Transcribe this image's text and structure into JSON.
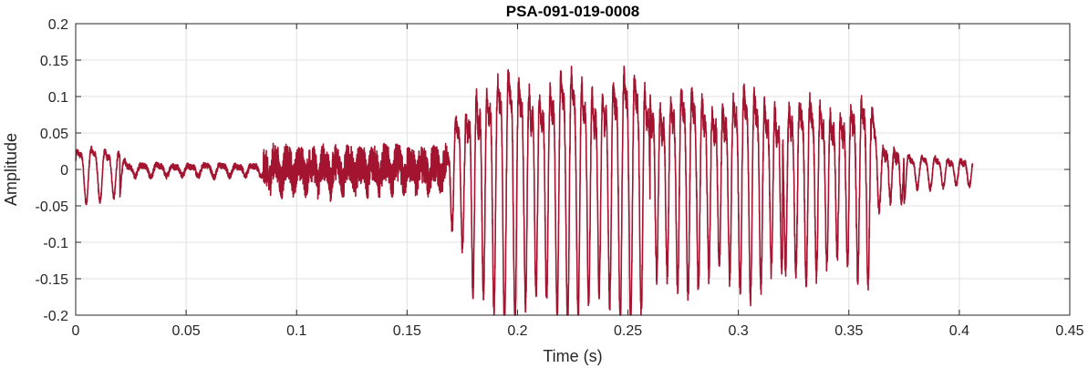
{
  "chart_data": {
    "type": "line",
    "title": "PSA-091-019-0008",
    "xlabel": "Time (s)",
    "ylabel": "Amplitude",
    "xlim": [
      0,
      0.45
    ],
    "ylim": [
      -0.2,
      0.2
    ],
    "x_ticks": [
      0,
      0.05,
      0.1,
      0.15,
      0.2,
      0.25,
      0.3,
      0.35,
      0.4,
      0.45
    ],
    "x_tick_labels": [
      "0",
      "0.05",
      "0.1",
      "0.15",
      "0.2",
      "0.25",
      "0.3",
      "0.35",
      "0.4",
      "0.45"
    ],
    "y_ticks": [
      -0.2,
      -0.15,
      -0.1,
      -0.05,
      0,
      0.05,
      0.1,
      0.15,
      0.2
    ],
    "y_tick_labels": [
      "-0.2",
      "-0.15",
      "-0.1",
      "-0.05",
      "0",
      "0.05",
      "0.1",
      "0.15",
      "0.2"
    ],
    "grid": true,
    "series_color": "#a2142f",
    "series": [
      {
        "x_start": 0,
        "x_end": 0.406,
        "segments": [
          {
            "t0": 0.0,
            "t1": 0.02,
            "amp": 0.035,
            "freq": 160,
            "noise": 0.004
          },
          {
            "t0": 0.02,
            "t1": 0.085,
            "amp": 0.008,
            "freq": 140,
            "noise": 0.004
          },
          {
            "t0": 0.085,
            "t1": 0.168,
            "amp": 0.015,
            "freq": 180,
            "noise": 0.025
          },
          {
            "t0": 0.168,
            "t1": 0.176,
            "amp": 0.09,
            "freq": 210,
            "noise": 0.01
          },
          {
            "t0": 0.176,
            "t1": 0.26,
            "amp": 0.16,
            "freq": 210,
            "noise": 0.015
          },
          {
            "t0": 0.26,
            "t1": 0.32,
            "amp": 0.13,
            "freq": 212,
            "noise": 0.015
          },
          {
            "t0": 0.32,
            "t1": 0.36,
            "amp": 0.115,
            "freq": 214,
            "noise": 0.015
          },
          {
            "t0": 0.36,
            "t1": 0.375,
            "amp": 0.04,
            "freq": 200,
            "noise": 0.008
          },
          {
            "t0": 0.375,
            "t1": 0.406,
            "amp": 0.02,
            "freq": 170,
            "noise": 0.004
          }
        ]
      }
    ]
  }
}
